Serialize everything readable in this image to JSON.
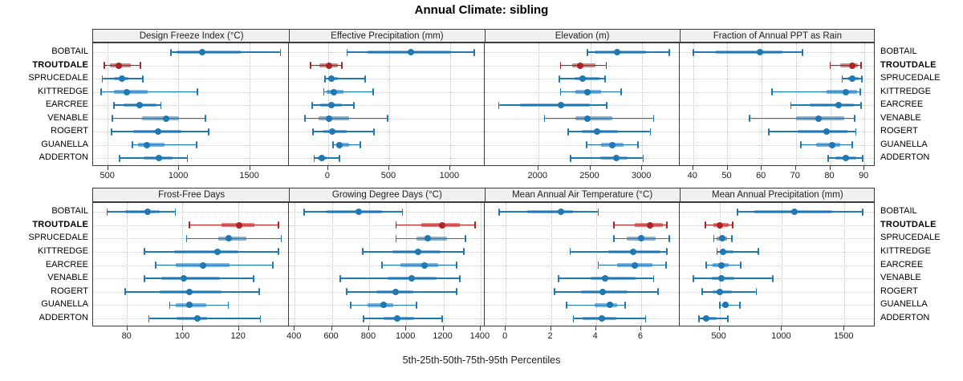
{
  "title": "Annual Climate: sibling",
  "caption": "5th-25th-50th-75th-95th Percentiles",
  "highlight_station": "TROUTDALE",
  "colors": {
    "series_blue": "#1f77b4",
    "series_blue_band": "rgba(31,119,180,0.55)",
    "highlight_red": "#b22222",
    "highlight_red_band": "rgba(178,34,34,0.55)",
    "header_bg": "#f0f0f0",
    "panel_border": "#3c3c3c",
    "gridline": "#c9c9c9",
    "text": "#111111"
  },
  "chart_data": {
    "type": "dot-whisker",
    "orientation": "horizontal",
    "grid": "dotted",
    "legend": "none",
    "percentiles": [
      5,
      25,
      50,
      75,
      95
    ],
    "stations": [
      "BOBTAIL",
      "TROUTDALE",
      "SPRUCEDALE",
      "KITTREDGE",
      "EARCREE",
      "VENABLE",
      "ROGERT",
      "GUANELLA",
      "ADDERTON"
    ],
    "highlight": "TROUTDALE",
    "panels": [
      {
        "title": "Design Freeze Index (°C)",
        "xlim": [
          400,
          1775
        ],
        "ticks": [
          500,
          1000,
          1500
        ],
        "values": [
          [
            950,
            990,
            1170,
            1440,
            1720
          ],
          [
            480,
            520,
            580,
            665,
            735
          ],
          [
            465,
            545,
            605,
            650,
            750
          ],
          [
            455,
            545,
            635,
            785,
            1135
          ],
          [
            545,
            612,
            730,
            845,
            878
          ],
          [
            535,
            745,
            915,
            1003,
            1190
          ],
          [
            530,
            685,
            855,
            1020,
            1215
          ],
          [
            675,
            717,
            780,
            905,
            1130
          ],
          [
            585,
            755,
            865,
            960,
            1065
          ]
        ]
      },
      {
        "title": "Effective Precipitation (mm)",
        "xlim": [
          -320,
          1280
        ],
        "ticks": [
          0,
          500,
          1000
        ],
        "values": [
          [
            155,
            325,
            675,
            1005,
            1200
          ],
          [
            -145,
            -70,
            5,
            80,
            110
          ],
          [
            -25,
            0,
            30,
            80,
            305
          ],
          [
            -35,
            -15,
            45,
            125,
            370
          ],
          [
            -130,
            -65,
            25,
            115,
            210
          ],
          [
            -190,
            -80,
            5,
            170,
            490
          ],
          [
            -125,
            -40,
            35,
            150,
            375
          ],
          [
            40,
            65,
            95,
            170,
            265
          ],
          [
            -115,
            -85,
            -55,
            -15,
            95
          ]
        ]
      },
      {
        "title": "Elevation (m)",
        "xlim": [
          1480,
          3360
        ],
        "ticks": [
          2000,
          2500,
          3000
        ],
        "values": [
          [
            2475,
            2540,
            2755,
            3040,
            3260
          ],
          [
            2215,
            2325,
            2400,
            2550,
            2655
          ],
          [
            2200,
            2350,
            2430,
            2590,
            2645
          ],
          [
            2215,
            2360,
            2470,
            2605,
            2800
          ],
          [
            1620,
            1825,
            2220,
            2500,
            2660
          ],
          [
            2060,
            2355,
            2475,
            2710,
            3110
          ],
          [
            2290,
            2415,
            2565,
            2770,
            3080
          ],
          [
            2465,
            2605,
            2715,
            2820,
            2960
          ],
          [
            2310,
            2600,
            2750,
            2860,
            3010
          ]
        ]
      },
      {
        "title": "Fraction of Annual PPT as Rain",
        "xlim": [
          36,
          93
        ],
        "ticks": [
          40,
          50,
          60,
          70,
          80,
          90
        ],
        "values": [
          [
            40,
            46.5,
            59.5,
            66,
            72
          ],
          [
            80,
            83,
            86.5,
            88,
            89
          ],
          [
            83.5,
            85,
            86.5,
            88.3,
            89.3
          ],
          [
            63,
            79,
            84.5,
            87.9,
            88.8
          ],
          [
            68.5,
            74,
            82.5,
            87,
            89
          ],
          [
            56.5,
            70,
            76.5,
            84,
            87.2
          ],
          [
            62,
            70.5,
            79,
            85,
            87.5
          ],
          [
            71.5,
            76,
            80.5,
            83,
            86.5
          ],
          [
            79.5,
            81.5,
            84.5,
            87.5,
            89.5
          ]
        ]
      },
      {
        "title": "Frost-Free Days",
        "xlim": [
          68,
          138
        ],
        "ticks": [
          80,
          100,
          120
        ],
        "values": [
          [
            73,
            79.5,
            87.5,
            92,
            97.5
          ],
          [
            102.5,
            114,
            120.5,
            126,
            134.5
          ],
          [
            101.5,
            113,
            116.5,
            123,
            135.5
          ],
          [
            86.5,
            97,
            112.5,
            120,
            134.5
          ],
          [
            90.5,
            97.5,
            107.5,
            117,
            132.5
          ],
          [
            86.5,
            92.5,
            100.5,
            113.5,
            125.5
          ],
          [
            79.5,
            92,
            102.5,
            114,
            127.5
          ],
          [
            95.5,
            97.5,
            102.5,
            108.5,
            116.5
          ],
          [
            88,
            98,
            105.5,
            109,
            128
          ]
        ]
      },
      {
        "title": "Growing Degree Days (°C)",
        "xlim": [
          370,
          1420
        ],
        "ticks": [
          400,
          600,
          800,
          1000,
          1200,
          1400
        ],
        "values": [
          [
            450,
            570,
            745,
            870,
            980
          ],
          [
            945,
            1080,
            1195,
            1290,
            1370
          ],
          [
            945,
            1055,
            1115,
            1220,
            1320
          ],
          [
            765,
            925,
            1065,
            1185,
            1310
          ],
          [
            870,
            970,
            1100,
            1170,
            1270
          ],
          [
            645,
            900,
            1030,
            1165,
            1290
          ],
          [
            680,
            840,
            945,
            1040,
            1270
          ],
          [
            700,
            790,
            880,
            930,
            1055
          ],
          [
            770,
            880,
            950,
            1040,
            1195
          ]
        ]
      },
      {
        "title": "Mean Annual Air Temperature (°C)",
        "xlim": [
          -0.95,
          7.7
        ],
        "ticks": [
          0,
          2,
          4,
          6
        ],
        "values": [
          [
            -0.3,
            0.95,
            2.45,
            3.0,
            4.1
          ],
          [
            4.8,
            5.7,
            6.4,
            6.95,
            7.15
          ],
          [
            4.8,
            5.35,
            6.0,
            6.65,
            7.25
          ],
          [
            2.85,
            4.55,
            5.65,
            6.85,
            7.15
          ],
          [
            4.1,
            4.95,
            5.7,
            6.5,
            7.1
          ],
          [
            2.35,
            3.75,
            4.4,
            5.75,
            6.55
          ],
          [
            2.15,
            3.35,
            4.3,
            5.4,
            6.75
          ],
          [
            2.7,
            3.95,
            4.6,
            4.95,
            5.3
          ],
          [
            3.0,
            3.4,
            4.25,
            4.9,
            6.2
          ]
        ]
      },
      {
        "title": "Mean Annual Precipitation (mm)",
        "xlim": [
          180,
          1742
        ],
        "ticks": [
          500,
          1000,
          1500
        ],
        "values": [
          [
            645,
            780,
            1100,
            1405,
            1645
          ],
          [
            385,
            450,
            505,
            575,
            605
          ],
          [
            455,
            480,
            520,
            560,
            600
          ],
          [
            480,
            500,
            530,
            615,
            810
          ],
          [
            395,
            445,
            515,
            575,
            670
          ],
          [
            290,
            440,
            515,
            615,
            925
          ],
          [
            360,
            445,
            505,
            600,
            795
          ],
          [
            505,
            520,
            545,
            575,
            665
          ],
          [
            335,
            360,
            395,
            480,
            565
          ]
        ]
      }
    ]
  }
}
